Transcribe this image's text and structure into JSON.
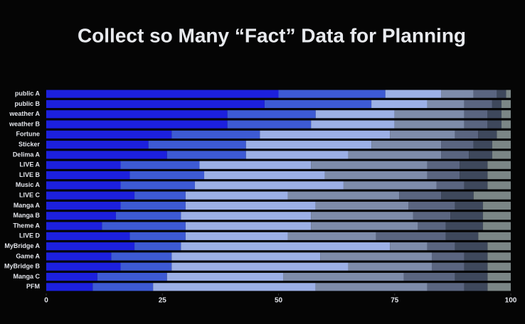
{
  "chart_data": {
    "type": "stacked_barh",
    "title": "Collect so Many “Fact” Data for Planning",
    "categories": [
      "public A",
      "public B",
      "weather A",
      "weather B",
      "Fortune",
      "Sticker",
      "Delima A",
      "LIVE A",
      "LIVE B",
      "Music A",
      "LIVE C",
      "Manga A",
      "Manga B",
      "Theme A",
      "LIVE D",
      "MyBridge A",
      "Game A",
      "MyBridge B",
      "Manga C",
      "PFM"
    ],
    "series": [
      {
        "color": "#1c20de",
        "values": [
          50,
          47,
          39,
          39,
          27,
          22,
          26,
          16,
          18,
          16,
          19,
          16,
          15,
          12,
          18,
          19,
          14,
          16,
          11,
          10
        ]
      },
      {
        "color": "#3d5ad4",
        "values": [
          23,
          23,
          19,
          18,
          19,
          21,
          17,
          17,
          16,
          16,
          11,
          14,
          14,
          18,
          12,
          10,
          13,
          11,
          15,
          13
        ]
      },
      {
        "color": "#9cb0e6",
        "values": [
          12,
          12,
          17,
          18,
          28,
          27,
          22,
          24,
          26,
          32,
          22,
          28,
          28,
          27,
          22,
          45,
          32,
          38,
          25,
          35
        ]
      },
      {
        "color": "#7e8caa",
        "values": [
          7,
          8,
          15,
          15,
          14,
          15,
          20,
          25,
          22,
          20,
          24,
          20,
          22,
          23,
          19,
          8,
          24,
          18,
          26,
          24
        ]
      },
      {
        "color": "#5a6580",
        "values": [
          5,
          6,
          5,
          5,
          5,
          7,
          6,
          7,
          7,
          6,
          9,
          10,
          8,
          6,
          15,
          6,
          7,
          7,
          11,
          8
        ]
      },
      {
        "color": "#3e485c",
        "values": [
          2,
          2,
          3,
          3,
          4,
          4,
          5,
          6,
          6,
          5,
          7,
          6,
          7,
          8,
          7,
          7,
          5,
          5,
          7,
          5
        ]
      },
      {
        "color": "#7b8686",
        "values": [
          1,
          2,
          2,
          2,
          3,
          4,
          4,
          5,
          5,
          5,
          8,
          6,
          6,
          6,
          7,
          5,
          5,
          5,
          5,
          5
        ]
      }
    ],
    "xlim": [
      0,
      100
    ],
    "xticks": [
      0,
      25,
      50,
      75,
      100
    ]
  }
}
